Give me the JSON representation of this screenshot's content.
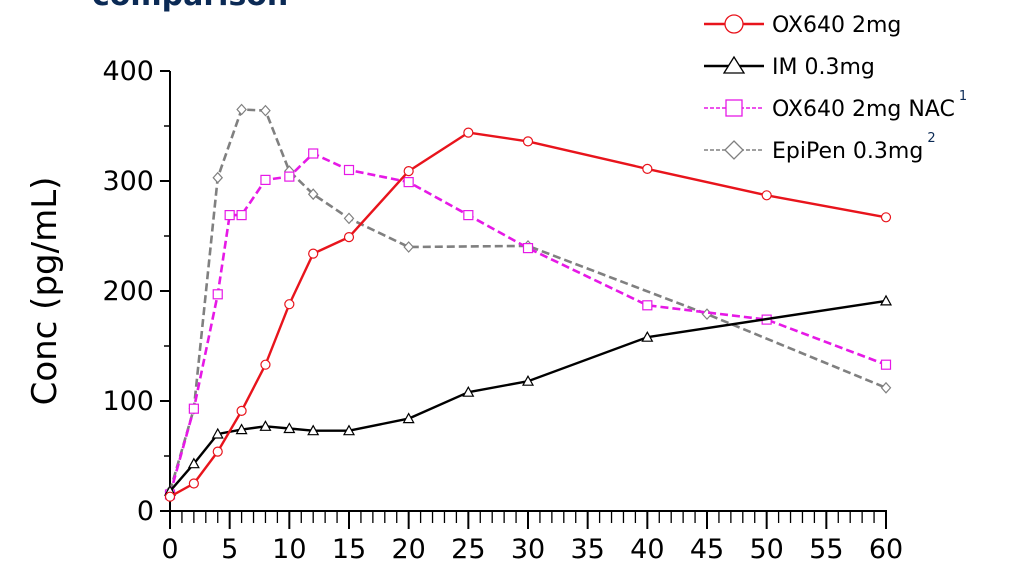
{
  "title_fragment": "comparison",
  "chart_data": {
    "type": "line",
    "ylabel": "Conc (pg/mL)",
    "xlabel": "",
    "xlim": [
      0,
      60
    ],
    "ylim": [
      0,
      400
    ],
    "xticks": [
      0,
      5,
      10,
      15,
      20,
      25,
      30,
      35,
      40,
      45,
      50,
      55,
      60
    ],
    "yticks": [
      0,
      100,
      200,
      300,
      400
    ],
    "legend_position": "top-right",
    "series": [
      {
        "name": "OX640 2mg",
        "superscript": "",
        "color": "#e8141c",
        "marker": "circle",
        "dash": "solid",
        "x": [
          0,
          2,
          4,
          6,
          8,
          10,
          12,
          15,
          20,
          25,
          30,
          40,
          50,
          60
        ],
        "y": [
          13,
          25,
          54,
          91,
          133,
          188,
          234,
          249,
          309,
          344,
          336,
          311,
          287,
          267
        ]
      },
      {
        "name": "IM 0.3mg",
        "superscript": "",
        "color": "#000000",
        "marker": "triangle",
        "dash": "solid",
        "x": [
          0,
          2,
          4,
          6,
          8,
          10,
          12,
          15,
          20,
          25,
          30,
          40,
          60
        ],
        "y": [
          18,
          43,
          70,
          74,
          77,
          75,
          73,
          73,
          84,
          108,
          118,
          158,
          191
        ]
      },
      {
        "name": "OX640 2mg NAC",
        "superscript": "1",
        "color": "#e619e6",
        "marker": "square",
        "dash": "dashed",
        "x": [
          0,
          2,
          4,
          5,
          6,
          8,
          10,
          12,
          15,
          20,
          25,
          30,
          40,
          50,
          60
        ],
        "y": [
          15,
          93,
          197,
          269,
          269,
          301,
          304,
          325,
          310,
          299,
          269,
          239,
          187,
          174,
          133
        ]
      },
      {
        "name": "EpiPen 0.3mg",
        "superscript": "2",
        "color": "#808080",
        "marker": "diamond",
        "dash": "dashed",
        "x": [
          0,
          2,
          4,
          6,
          8,
          10,
          12,
          15,
          20,
          30,
          45,
          60
        ],
        "y": [
          18,
          93,
          303,
          365,
          364,
          309,
          288,
          266,
          240,
          241,
          179,
          112
        ]
      }
    ]
  }
}
